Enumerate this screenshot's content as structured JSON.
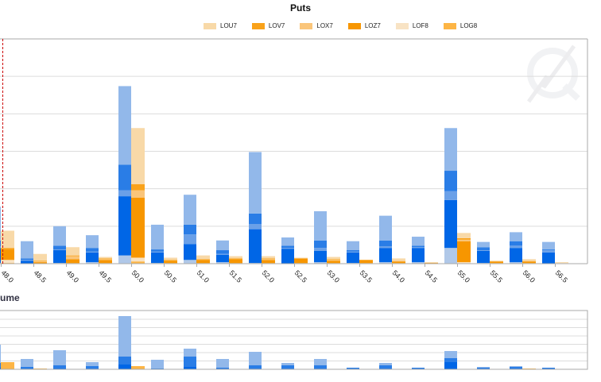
{
  "chart_data": [
    {
      "type": "bar",
      "stacked": true,
      "title": "Puts",
      "xlabel": "",
      "ylabel": "",
      "ylim": [
        0,
        300
      ],
      "grid": true,
      "legend_position": "top",
      "categories": [
        "48.0",
        "48.5",
        "49.0",
        "49.5",
        "50.0",
        "50.5",
        "51.0",
        "51.5",
        "52.0",
        "52.5",
        "53.0",
        "53.5",
        "54.0",
        "54.5",
        "55.0",
        "55.5",
        "56.0",
        "56.5"
      ],
      "blue_stack_colors": [
        "#b0c8e8",
        "#0066e6",
        "#6aa0e8",
        "#2a7de6",
        "#92b8ea"
      ],
      "blue_stacks": [
        [
          1,
          20,
          2,
          8,
          45
        ],
        [
          0,
          4,
          1,
          2,
          23
        ],
        [
          1,
          17,
          1,
          5,
          26
        ],
        [
          2,
          13,
          1,
          5,
          17
        ],
        [
          11,
          79,
          8,
          34,
          105
        ],
        [
          1,
          14,
          1,
          3,
          33
        ],
        [
          5,
          21,
          13,
          13,
          40
        ],
        [
          2,
          10,
          1,
          5,
          13
        ],
        [
          1,
          45,
          7,
          14,
          82
        ],
        [
          0,
          20,
          1,
          3,
          11
        ],
        [
          2,
          15,
          4,
          10,
          39
        ],
        [
          1,
          14,
          1,
          2,
          12
        ],
        [
          2,
          19,
          2,
          8,
          33
        ],
        [
          2,
          19,
          1,
          2,
          12
        ],
        [
          21,
          64,
          12,
          27,
          57
        ],
        [
          1,
          16,
          1,
          4,
          7
        ],
        [
          2,
          19,
          3,
          6,
          12
        ],
        [
          0,
          15,
          3,
          1,
          10
        ]
      ],
      "series": [
        {
          "name": "LOG8",
          "color": "#fdb545",
          "values": [
            1,
            0,
            1,
            1,
            3,
            1,
            1,
            1,
            1,
            1,
            1,
            1,
            1,
            0,
            0,
            1,
            1,
            0
          ]
        },
        {
          "name": "LOF8",
          "color": "#f8e3c4",
          "values": [
            4,
            0,
            0,
            0,
            5,
            0,
            0,
            0,
            0,
            0,
            0,
            0,
            0,
            0,
            2,
            0,
            0,
            1
          ]
        },
        {
          "name": "LOZ7",
          "color": "#f79600",
          "values": [
            14,
            2,
            5,
            4,
            80,
            3,
            4,
            5,
            4,
            6,
            3,
            4,
            2,
            1,
            28,
            2,
            2,
            0
          ]
        },
        {
          "name": "LOX7",
          "color": "#fac57a",
          "values": [
            0,
            1,
            4,
            1,
            10,
            0,
            0,
            0,
            1,
            0,
            1,
            0,
            1,
            0,
            2,
            0,
            1,
            0
          ]
        },
        {
          "name": "LOV7",
          "color": "#f9a21a",
          "values": [
            2,
            1,
            1,
            1,
            8,
            1,
            1,
            1,
            1,
            0,
            1,
            0,
            0,
            0,
            2,
            0,
            0,
            0
          ]
        },
        {
          "name": "LOU7",
          "color": "#f8d9a8",
          "values": [
            23,
            9,
            11,
            2,
            75,
            3,
            5,
            3,
            3,
            1,
            3,
            0,
            3,
            1,
            7,
            1,
            2,
            1
          ]
        }
      ],
      "legend_order": [
        "LOU7",
        "LOV7",
        "LOX7",
        "LOZ7",
        "LOF8",
        "LOG8"
      ]
    },
    {
      "type": "bar",
      "stacked": true,
      "title": "ume",
      "ylim": [
        0,
        74
      ],
      "grid": true,
      "blue_stack_colors": [
        "#0066e6",
        "#2a7de6",
        "#92b8ea"
      ],
      "blue_stacks": [
        [
          2,
          6,
          23
        ],
        [
          0,
          3,
          10
        ],
        [
          1,
          4,
          19
        ],
        [
          0,
          4,
          5
        ],
        [
          6,
          10,
          51
        ],
        [
          0,
          1,
          11
        ],
        [
          3,
          13,
          10
        ],
        [
          0,
          2,
          11
        ],
        [
          0,
          5,
          17
        ],
        [
          0,
          5,
          3
        ],
        [
          0,
          5,
          8
        ],
        [
          0,
          2,
          0
        ],
        [
          0,
          5,
          3
        ],
        [
          0,
          2,
          0
        ],
        [
          9,
          5,
          9
        ],
        [
          0,
          2,
          1
        ],
        [
          0,
          3,
          1
        ],
        [
          0,
          2,
          0
        ]
      ],
      "orange_color": "#fdb545",
      "orange_values": [
        9,
        1,
        0,
        0,
        4,
        0,
        0,
        0,
        0,
        0,
        0,
        0,
        0,
        0,
        0,
        0,
        1,
        0
      ]
    }
  ],
  "legend_colors": {
    "LOU7": "#f8d9a8",
    "LOV7": "#f9a21a",
    "LOX7": "#fac57a",
    "LOZ7": "#f79600",
    "LOF8": "#f8e3c4",
    "LOG8": "#fdb545"
  }
}
